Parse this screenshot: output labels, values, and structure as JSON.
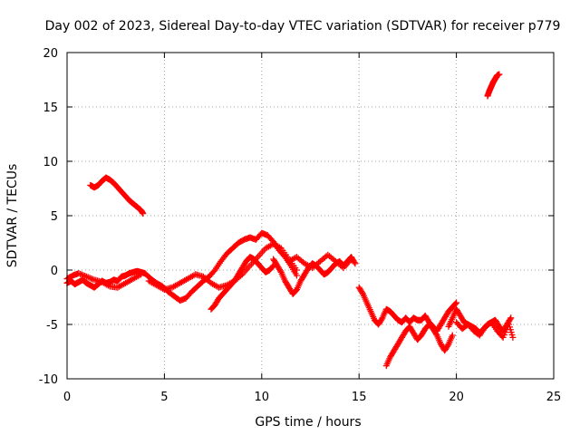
{
  "chart_data": {
    "type": "scatter",
    "title": "Day 002 of 2023, Sidereal Day-to-day VTEC variation (SDTVAR) for receiver p779",
    "xlabel": "GPS time / hours",
    "ylabel": "SDTVAR / TECUs",
    "xlim": [
      0,
      25
    ],
    "ylim": [
      -10,
      20
    ],
    "x_ticks": [
      0,
      5,
      10,
      15,
      20,
      25
    ],
    "y_ticks": [
      -10,
      -5,
      0,
      5,
      10,
      15,
      20
    ],
    "grid": true,
    "marker": "plus",
    "series": [
      {
        "name": "SDTVAR",
        "color": "#ff0000",
        "segments": [
          {
            "x": [
              0.0,
              0.2,
              0.4,
              0.6,
              0.8,
              1.0,
              1.2,
              1.4,
              1.6,
              1.8,
              2.0,
              2.2,
              2.4,
              2.6,
              2.8,
              3.0,
              3.2,
              3.4,
              3.6,
              3.8,
              4.0
            ],
            "y": [
              -1.2,
              -1.0,
              -1.3,
              -1.1,
              -0.9,
              -1.2,
              -1.4,
              -1.6,
              -1.3,
              -1.0,
              -1.2,
              -1.1,
              -0.9,
              -1.0,
              -0.6,
              -0.5,
              -0.3,
              -0.2,
              -0.1,
              -0.2,
              -0.3
            ]
          },
          {
            "x": [
              0.0,
              0.3,
              0.6,
              1.0,
              1.4,
              1.8,
              2.2,
              2.6,
              3.0,
              3.4,
              3.8
            ],
            "y": [
              -0.8,
              -0.5,
              -0.3,
              -0.6,
              -0.9,
              -1.1,
              -1.5,
              -1.6,
              -1.2,
              -0.8,
              -0.4
            ]
          },
          {
            "x": [
              1.2,
              1.4,
              1.6,
              1.8,
              2.0,
              2.2,
              2.4,
              2.6,
              2.8,
              3.0,
              3.2,
              3.4,
              3.6,
              3.8,
              3.9
            ],
            "y": [
              7.8,
              7.6,
              7.8,
              8.2,
              8.5,
              8.3,
              8.0,
              7.6,
              7.2,
              6.8,
              6.4,
              6.1,
              5.8,
              5.5,
              5.2
            ]
          },
          {
            "x": [
              4.0,
              4.3,
              4.6,
              4.9,
              5.2,
              5.5,
              5.8,
              6.1,
              6.4,
              6.7,
              7.0,
              7.3,
              7.6,
              7.9,
              8.2,
              8.5,
              8.8,
              9.1,
              9.4,
              9.7,
              10.0,
              10.3,
              10.6,
              10.9,
              11.2,
              11.5,
              11.8
            ],
            "y": [
              -0.3,
              -0.8,
              -1.2,
              -1.5,
              -2.0,
              -2.4,
              -2.8,
              -2.6,
              -2.0,
              -1.5,
              -1.0,
              -0.6,
              0.0,
              0.8,
              1.5,
              2.0,
              2.5,
              2.8,
              3.0,
              2.8,
              3.4,
              3.2,
              2.6,
              1.8,
              1.2,
              0.4,
              -0.5
            ]
          },
          {
            "x": [
              4.2,
              4.6,
              5.0,
              5.4,
              5.8,
              6.2,
              6.6,
              7.0,
              7.4,
              7.8,
              8.2,
              8.6,
              9.0,
              9.4,
              9.8,
              10.2,
              10.6,
              11.0,
              11.4,
              11.8
            ],
            "y": [
              -1.0,
              -1.4,
              -1.8,
              -1.6,
              -1.2,
              -0.8,
              -0.4,
              -0.6,
              -1.2,
              -1.6,
              -1.4,
              -1.0,
              -0.4,
              0.4,
              1.2,
              2.0,
              2.4,
              2.0,
              1.0,
              0.0
            ]
          },
          {
            "x": [
              7.4,
              7.6,
              7.8,
              8.0,
              8.2,
              8.4,
              8.6,
              8.8,
              9.0,
              9.2,
              9.4,
              9.6,
              9.8,
              10.0,
              10.2,
              10.4,
              10.6
            ],
            "y": [
              -3.6,
              -3.2,
              -2.6,
              -2.2,
              -1.8,
              -1.4,
              -1.0,
              -0.4,
              0.2,
              0.8,
              1.2,
              1.0,
              0.6,
              0.2,
              -0.2,
              0.0,
              0.4
            ]
          },
          {
            "x": [
              10.6,
              10.8,
              11.0,
              11.2,
              11.4,
              11.6,
              11.8,
              12.0,
              12.2,
              12.4,
              12.6,
              12.8,
              13.0,
              13.2,
              13.4,
              13.6,
              13.8,
              14.0,
              14.2,
              14.4,
              14.6,
              14.8
            ],
            "y": [
              1.0,
              0.4,
              -0.2,
              -1.0,
              -1.6,
              -2.2,
              -1.8,
              -1.0,
              -0.4,
              0.2,
              0.6,
              0.4,
              0.0,
              -0.4,
              -0.2,
              0.2,
              0.6,
              0.8,
              0.4,
              0.8,
              1.2,
              0.6
            ]
          },
          {
            "x": [
              11.4,
              11.8,
              12.2,
              12.6,
              13.0,
              13.4,
              13.8,
              14.2,
              14.6
            ],
            "y": [
              0.8,
              1.2,
              0.6,
              0.2,
              0.8,
              1.4,
              0.8,
              0.2,
              1.0
            ]
          },
          {
            "x": [
              15.0,
              15.2,
              15.4,
              15.6,
              15.8,
              16.0,
              16.2,
              16.4,
              16.6,
              16.8,
              17.0,
              17.2,
              17.4,
              17.6,
              17.8,
              18.0,
              18.2,
              18.4,
              18.6,
              18.8,
              19.0,
              19.2,
              19.4,
              19.6,
              19.8,
              20.0
            ],
            "y": [
              -1.6,
              -2.2,
              -3.0,
              -3.8,
              -4.6,
              -5.0,
              -4.4,
              -3.6,
              -3.8,
              -4.2,
              -4.6,
              -4.8,
              -4.4,
              -4.8,
              -4.4,
              -4.6,
              -4.6,
              -4.2,
              -4.8,
              -5.2,
              -5.6,
              -5.0,
              -4.4,
              -3.8,
              -3.4,
              -3.0
            ]
          },
          {
            "x": [
              16.4,
              16.6,
              16.8,
              17.0,
              17.2,
              17.4,
              17.6,
              17.8,
              18.0,
              18.2,
              18.4,
              18.6,
              18.8,
              19.0,
              19.2,
              19.4,
              19.6,
              19.8
            ],
            "y": [
              -8.8,
              -8.0,
              -7.4,
              -6.8,
              -6.2,
              -5.6,
              -5.2,
              -5.8,
              -6.4,
              -6.0,
              -5.4,
              -5.0,
              -5.4,
              -6.0,
              -6.8,
              -7.4,
              -6.8,
              -6.0
            ]
          },
          {
            "x": [
              19.6,
              19.8,
              20.0,
              20.2,
              20.4,
              20.6,
              20.8,
              21.0,
              21.2,
              21.4,
              21.6,
              21.8,
              22.0,
              22.2,
              22.4,
              22.6,
              22.8
            ],
            "y": [
              -5.2,
              -4.4,
              -3.6,
              -4.2,
              -4.8,
              -5.0,
              -5.2,
              -5.4,
              -5.8,
              -5.4,
              -5.0,
              -4.8,
              -4.6,
              -5.2,
              -5.6,
              -5.0,
              -4.4
            ]
          },
          {
            "x": [
              20.0,
              20.3,
              20.6,
              20.9,
              21.2,
              21.5,
              21.8,
              22.1,
              22.4,
              22.7,
              22.9
            ],
            "y": [
              -4.8,
              -5.4,
              -5.0,
              -5.6,
              -6.0,
              -5.2,
              -4.8,
              -5.6,
              -6.2,
              -5.0,
              -6.2
            ]
          },
          {
            "x": [
              21.6,
              21.7,
              21.8,
              21.9,
              22.0,
              22.1,
              22.2
            ],
            "y": [
              16.0,
              16.5,
              16.9,
              17.3,
              17.6,
              17.9,
              18.0
            ]
          }
        ]
      }
    ]
  }
}
